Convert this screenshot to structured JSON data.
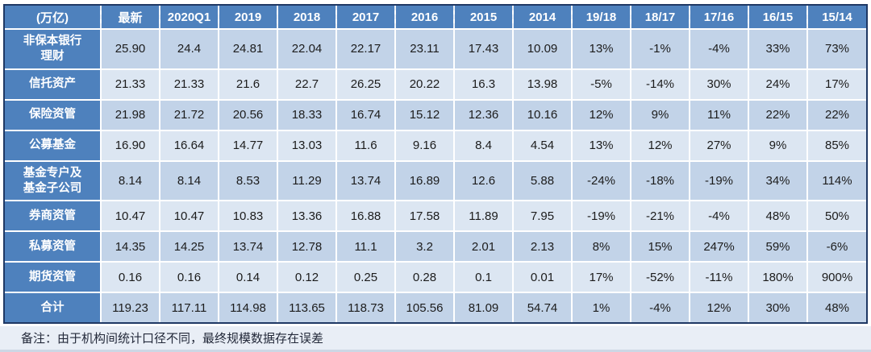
{
  "chart_data": {
    "type": "table",
    "unit_header": "(万亿)",
    "columns": [
      "最新",
      "2020Q1",
      "2019",
      "2018",
      "2017",
      "2016",
      "2015",
      "2014",
      "19/18",
      "18/17",
      "17/16",
      "16/15",
      "15/14"
    ],
    "rows": [
      {
        "label": "非保本银行\n理财",
        "values": [
          "25.90",
          "24.4",
          "24.81",
          "22.04",
          "22.17",
          "23.11",
          "17.43",
          "10.09",
          "13%",
          "-1%",
          "-4%",
          "33%",
          "73%"
        ]
      },
      {
        "label": "信托资产",
        "values": [
          "21.33",
          "21.33",
          "21.6",
          "22.7",
          "26.25",
          "20.22",
          "16.3",
          "13.98",
          "-5%",
          "-14%",
          "30%",
          "24%",
          "17%"
        ]
      },
      {
        "label": "保险资管",
        "values": [
          "21.98",
          "21.72",
          "20.56",
          "18.33",
          "16.74",
          "15.12",
          "12.36",
          "10.16",
          "12%",
          "9%",
          "11%",
          "22%",
          "22%"
        ]
      },
      {
        "label": "公募基金",
        "values": [
          "16.90",
          "16.64",
          "14.77",
          "13.03",
          "11.6",
          "9.16",
          "8.4",
          "4.54",
          "13%",
          "12%",
          "27%",
          "9%",
          "85%"
        ]
      },
      {
        "label": "基金专户及\n基金子公司",
        "values": [
          "8.14",
          "8.14",
          "8.53",
          "11.29",
          "13.74",
          "16.89",
          "12.6",
          "5.88",
          "-24%",
          "-18%",
          "-19%",
          "34%",
          "114%"
        ]
      },
      {
        "label": "券商资管",
        "values": [
          "10.47",
          "10.47",
          "10.83",
          "13.36",
          "16.88",
          "17.58",
          "11.89",
          "7.95",
          "-19%",
          "-21%",
          "-4%",
          "48%",
          "50%"
        ]
      },
      {
        "label": "私募资管",
        "values": [
          "14.35",
          "14.25",
          "13.74",
          "12.78",
          "11.1",
          "3.2",
          "2.01",
          "2.13",
          "8%",
          "15%",
          "247%",
          "59%",
          "-6%"
        ]
      },
      {
        "label": "期货资管",
        "values": [
          "0.16",
          "0.16",
          "0.14",
          "0.12",
          "0.25",
          "0.28",
          "0.1",
          "0.01",
          "17%",
          "-52%",
          "-11%",
          "180%",
          "900%"
        ]
      },
      {
        "label": "合计",
        "values": [
          "119.23",
          "117.11",
          "114.98",
          "113.65",
          "118.73",
          "105.56",
          "81.09",
          "54.74",
          "1%",
          "-4%",
          "12%",
          "30%",
          "48%"
        ]
      }
    ],
    "note": "备注：由于机构间统计口径不同，最终规模数据存在误差"
  },
  "colors": {
    "header_bg": "#4E81BD",
    "row_odd": "#C2D3E8",
    "row_even": "#DCE6F2",
    "border_dark": "#1F3864",
    "note_bg": "#E9EEF6",
    "grid_line": "#FFFFFF"
  }
}
